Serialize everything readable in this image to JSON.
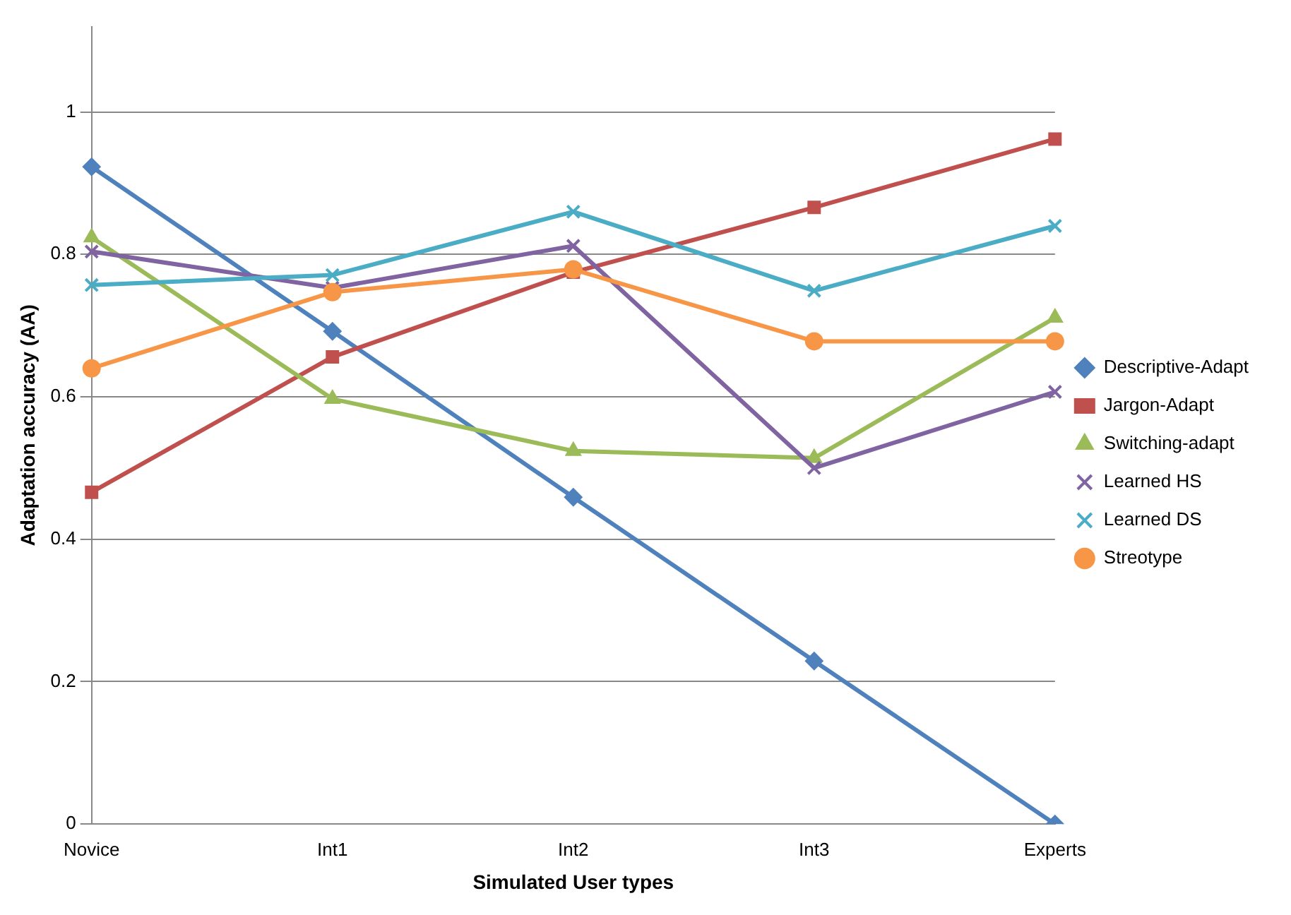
{
  "chart_data": {
    "type": "line",
    "xlabel": "Simulated User types",
    "ylabel": "Adaptation accuracy (AA)",
    "categories": [
      "Novice",
      "Int1",
      "Int2",
      "Int3",
      "Experts"
    ],
    "ylim": [
      0,
      1.12
    ],
    "yticks": [
      0,
      0.2,
      0.4,
      0.6,
      0.8,
      1
    ],
    "grid": "y",
    "legend": "right",
    "series": [
      {
        "name": "Descriptive-Adapt",
        "color": "#4f81bd",
        "marker": "diamond",
        "values": [
          0.923,
          0.692,
          0.459,
          0.229,
          0
        ]
      },
      {
        "name": "Jargon-Adapt",
        "color": "#c0504d",
        "marker": "square",
        "values": [
          0.466,
          0.656,
          0.775,
          0.866,
          0.962
        ]
      },
      {
        "name": "Switching-adapt",
        "color": "#9bbb59",
        "marker": "triangle",
        "values": [
          0.824,
          0.597,
          0.524,
          0.514,
          0.711
        ]
      },
      {
        "name": "Learned HS",
        "color": "#8064a2",
        "marker": "cross",
        "values": [
          0.804,
          0.753,
          0.812,
          0.5,
          0.607
        ]
      },
      {
        "name": "Learned DS",
        "color": "#4bacc6",
        "marker": "cross",
        "values": [
          0.757,
          0.771,
          0.86,
          0.749,
          0.84
        ]
      },
      {
        "name": "Streotype",
        "color": "#f79646",
        "marker": "circle",
        "values": [
          0.64,
          0.747,
          0.779,
          0.678,
          0.678
        ]
      }
    ]
  }
}
